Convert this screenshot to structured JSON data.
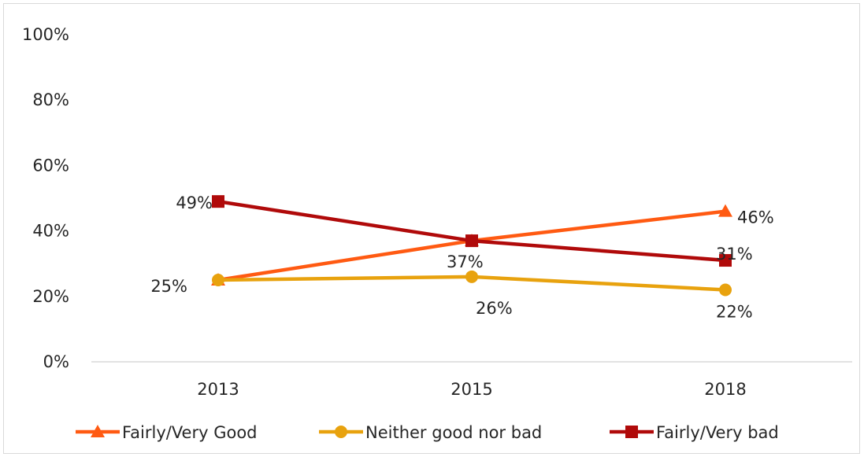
{
  "chart_data": {
    "type": "line",
    "categories": [
      "2013",
      "2015",
      "2018"
    ],
    "ylim": [
      0,
      100
    ],
    "yticks": [
      "0%",
      "20%",
      "40%",
      "60%",
      "80%",
      "100%"
    ],
    "grid": false,
    "legend_position": "bottom",
    "series": [
      {
        "name": "Fairly/Very Good",
        "values": [
          25,
          37,
          46
        ],
        "labels": [
          "",
          "",
          "46%"
        ],
        "color": "#FF5A12",
        "marker": "triangle"
      },
      {
        "name": "Neither good nor bad",
        "values": [
          25,
          26,
          22
        ],
        "labels": [
          "25%",
          "26%",
          "22%"
        ],
        "color": "#E8A20E",
        "marker": "circle"
      },
      {
        "name": "Fairly/Very bad",
        "values": [
          49,
          37,
          31
        ],
        "labels": [
          "49%",
          "37%",
          "31%"
        ],
        "color": "#B00A0A",
        "marker": "square"
      }
    ]
  }
}
